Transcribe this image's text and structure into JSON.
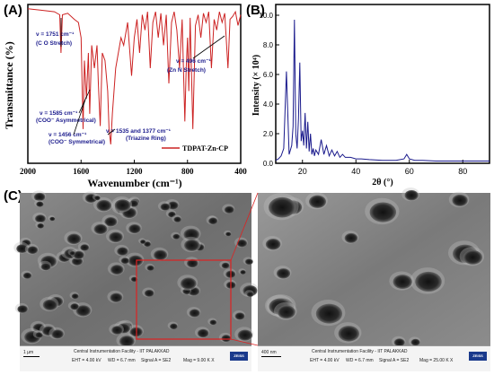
{
  "panels": {
    "a": "(A)",
    "b": "(B)",
    "c": "(C)"
  },
  "chart_data": [
    {
      "type": "line",
      "title": "",
      "xlabel": "Wavenumber (cm⁻¹)",
      "ylabel": "Transmittance (%)",
      "xlim": [
        2000,
        400
      ],
      "x_ticks": [
        "2000",
        "1600",
        "1200",
        "800",
        "400"
      ],
      "series": [
        {
          "name": "TDPAT-Zn-CP",
          "color": "#cc2222",
          "x": [
            2000,
            1900,
            1800,
            1760,
            1751,
            1740,
            1700,
            1650,
            1620,
            1600,
            1585,
            1575,
            1560,
            1545,
            1535,
            1520,
            1500,
            1480,
            1470,
            1456,
            1440,
            1420,
            1400,
            1390,
            1377,
            1365,
            1340,
            1300,
            1280,
            1250,
            1220,
            1200,
            1180,
            1160,
            1140,
            1120,
            1100,
            1080,
            1060,
            1040,
            1020,
            1000,
            980,
            960,
            940,
            920,
            900,
            880,
            860,
            840,
            820,
            810,
            800,
            790,
            780,
            760,
            740,
            720,
            700,
            680,
            660,
            640,
            620,
            600,
            580,
            560,
            540,
            520,
            496,
            480,
            460,
            440,
            420,
            400
          ],
          "y": [
            99,
            98,
            97,
            95,
            70,
            95,
            96,
            92,
            90,
            80,
            20,
            65,
            40,
            70,
            30,
            75,
            60,
            75,
            50,
            22,
            70,
            65,
            45,
            20,
            10,
            30,
            60,
            80,
            75,
            90,
            55,
            80,
            92,
            70,
            95,
            85,
            97,
            60,
            90,
            97,
            80,
            96,
            75,
            95,
            50,
            90,
            97,
            85,
            60,
            92,
            25,
            60,
            80,
            45,
            93,
            20,
            88,
            95,
            80,
            96,
            90,
            97,
            60,
            92,
            85,
            97,
            90,
            96,
            60,
            92,
            94,
            97,
            88,
            95
          ]
        }
      ],
      "annotations": [
        "ν = 1751 cm⁻¹",
        "(C   O Stretch)",
        "ν = 496 cm⁻¹",
        "(Zn   N Stretch)",
        "ν = 1585 cm⁻¹",
        "(COO⁻ Asymmetrical)",
        "ν = 1456 cm⁻¹",
        "(COO⁻ Symmetrical)",
        "ν = 1535 and  1377 cm⁻¹",
        "(Triazine Ring)"
      ],
      "legend_label": "TDPAT-Zn-CP"
    },
    {
      "type": "line",
      "title": "",
      "xlabel": "2θ (°)",
      "ylabel": "Intensity (× 10⁴)",
      "xlim": [
        10,
        90
      ],
      "ylim": [
        0,
        10
      ],
      "x_ticks": [
        "20",
        "40",
        "60",
        "80"
      ],
      "y_ticks": [
        "0.0",
        "2.0",
        "4.0",
        "6.0",
        "8.0",
        "10.0"
      ],
      "series": [
        {
          "color": "#1a1a8c",
          "x": [
            10,
            11,
            12,
            13,
            14,
            15,
            16,
            16.5,
            17,
            17.5,
            18,
            18.5,
            19,
            19.5,
            20,
            20.5,
            21,
            21.5,
            22,
            22.5,
            23,
            23.5,
            24,
            24.5,
            25,
            26,
            27,
            28,
            29,
            30,
            31,
            32,
            33,
            34,
            35,
            36,
            38,
            40,
            42,
            45,
            50,
            55,
            58,
            59,
            60,
            62,
            65,
            70,
            75,
            80,
            85,
            90
          ],
          "y": [
            0.2,
            0.3,
            0.5,
            1.0,
            6.2,
            0.6,
            1.2,
            2.5,
            9.7,
            2.0,
            1.0,
            3.0,
            6.8,
            1.5,
            2.2,
            1.2,
            3.4,
            1.0,
            2.8,
            0.8,
            2.0,
            0.6,
            1.0,
            0.5,
            0.9,
            0.6,
            1.6,
            0.6,
            1.2,
            0.5,
            0.9,
            0.5,
            0.8,
            0.4,
            0.6,
            0.4,
            0.4,
            0.3,
            0.3,
            0.25,
            0.2,
            0.2,
            0.3,
            0.6,
            0.3,
            0.2,
            0.2,
            0.15,
            0.15,
            0.15,
            0.15,
            0.15
          ]
        }
      ]
    }
  ],
  "sem": {
    "left_footer": {
      "facility": "Central Instrumentation Facility - IIT PALAKKAD",
      "scale": "1 µm",
      "eht": "EHT = 4.00 kV",
      "wd": "WD = 6.7 mm",
      "signal": "Signal A = SE2",
      "mag": "Mag = 9.00 K X",
      "brand": "ZEISS"
    },
    "right_footer": {
      "facility": "Central Instrumentation Facility - IIT PALAKKAD",
      "scale": "400 nm",
      "eht": "EHT = 4.00 kV",
      "wd": "WD = 6.7 mm",
      "signal": "Signal A = SE2",
      "mag": "Mag = 25.00 K X",
      "brand": "ZEISS"
    }
  }
}
